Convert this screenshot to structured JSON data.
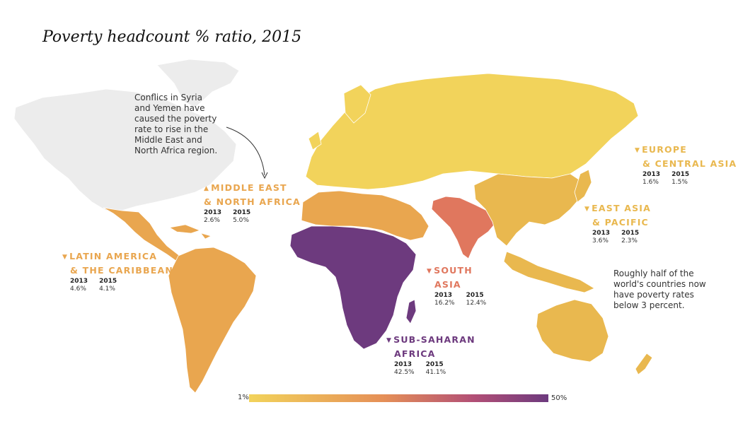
{
  "title": "Poverty headcount % ratio, 2015",
  "colors": {
    "low": "#f2d35b",
    "mid_low": "#e9a64f",
    "mid": "#e0775e",
    "high": "#6d3a7e",
    "no_data": "#ececec",
    "borders": "#ffffff"
  },
  "regions": [
    {
      "name_line1": "MIDDLE EAST",
      "name_line2": "& NORTH AFRICA",
      "color": "#e9a64f",
      "years": [
        "2013",
        "2015"
      ],
      "values": [
        "2.6%",
        "5.0%"
      ]
    },
    {
      "name_line1": "LATIN AMERICA",
      "name_line2": "& THE CARIBBEAN",
      "color": "#e9a64f",
      "years": [
        "2013",
        "2015"
      ],
      "values": [
        "4.6%",
        "4.1%"
      ]
    },
    {
      "name_line1": "SOUTH",
      "name_line2": "ASIA",
      "color": "#e0775e",
      "years": [
        "2013",
        "2015"
      ],
      "values": [
        "16.2%",
        "12.4%"
      ]
    },
    {
      "name_line1": "SUB-SAHARAN",
      "name_line2": "AFRICA",
      "color": "#6d3a7e",
      "years": [
        "2013",
        "2015"
      ],
      "values": [
        "42.5%",
        "41.1%"
      ]
    },
    {
      "name_line1": "EUROPE",
      "name_line2": "& CENTRAL ASIA",
      "color": "#e9b84f",
      "years": [
        "2013",
        "2015"
      ],
      "values": [
        "1.6%",
        "1.5%"
      ]
    },
    {
      "name_line1": "EAST ASIA",
      "name_line2": "& PACIFIC",
      "color": "#e9b84f",
      "years": [
        "2013",
        "2015"
      ],
      "values": [
        "3.6%",
        "2.3%"
      ]
    }
  ],
  "notes": {
    "conflict": [
      "Conflics in Syria",
      "and Yemen have",
      "caused the poverty",
      "rate to rise in the",
      "Middle East and",
      "North Africa region."
    ],
    "half": [
      "Roughly half of the",
      "world's countries now",
      "have poverty rates",
      "below 3 percent."
    ]
  },
  "legend": {
    "min": "1%",
    "max": "50%"
  }
}
